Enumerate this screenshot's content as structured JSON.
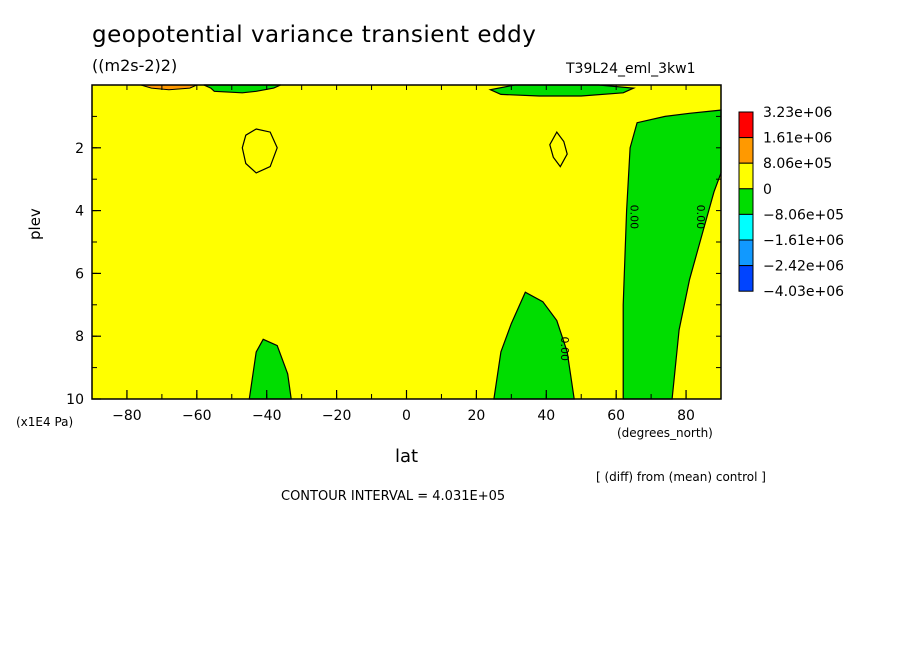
{
  "title": "geopotential variance transient eddy",
  "units": "((m2s-2)2)",
  "run_label": "T39L24_eml_3kw1",
  "chart_data": {
    "type": "contour",
    "xlabel": "lat",
    "x_units": "(degrees_north)",
    "ylabel": "plev",
    "y_units": "(x1E4 Pa)",
    "xlim": [
      -90,
      90
    ],
    "ylim": [
      10,
      0
    ],
    "xticks": [
      -80,
      -60,
      -40,
      -20,
      0,
      20,
      40,
      60,
      80
    ],
    "yticks": [
      2,
      4,
      6,
      8,
      10
    ],
    "legend": {
      "placement": "right",
      "levels": [
        "3.23e+06",
        "1.61e+06",
        "8.06e+05",
        "0",
        "-8.06e+05",
        "-1.61e+06",
        "-2.42e+06",
        "-4.03e+06"
      ],
      "colors": [
        "#ff0000",
        "#ff9900",
        "#ffff00",
        "#00dd00",
        "#00ffff",
        "#1199ff",
        "#0044ff"
      ]
    },
    "contour_labels": [
      {
        "text": "0.00",
        "lat": 65,
        "plev": 4.2
      },
      {
        "text": "0.00",
        "lat": 84,
        "plev": 4.2
      },
      {
        "text": "0.00",
        "lat": 45,
        "plev": 8.4
      }
    ],
    "negative_regions": [
      {
        "name": "sh-upper",
        "points": [
          [
            -58,
            0
          ],
          [
            -56,
            0.1
          ],
          [
            -55,
            0.2
          ],
          [
            -47,
            0.25
          ],
          [
            -43,
            0.2
          ],
          [
            -38,
            0.1
          ],
          [
            -36,
            0
          ]
        ]
      },
      {
        "name": "sh-lower",
        "points": [
          [
            -45,
            10
          ],
          [
            -43,
            8.5
          ],
          [
            -41,
            8.1
          ],
          [
            -37,
            8.3
          ],
          [
            -34,
            9.2
          ],
          [
            -33,
            10
          ]
        ]
      },
      {
        "name": "nh-upper",
        "points": [
          [
            24,
            0.15
          ],
          [
            31,
            0
          ],
          [
            55,
            0
          ],
          [
            65,
            0.1
          ],
          [
            62,
            0.25
          ],
          [
            50,
            0.35
          ],
          [
            38,
            0.35
          ],
          [
            27,
            0.3
          ]
        ]
      },
      {
        "name": "nh-mid",
        "points": [
          [
            25,
            10
          ],
          [
            27,
            8.5
          ],
          [
            30,
            7.6
          ],
          [
            34,
            6.6
          ],
          [
            39,
            6.9
          ],
          [
            43,
            7.5
          ],
          [
            46,
            8.5
          ],
          [
            48,
            10
          ]
        ]
      },
      {
        "name": "nh-polar",
        "points": [
          [
            62,
            10
          ],
          [
            62,
            7
          ],
          [
            63,
            4
          ],
          [
            64,
            2
          ],
          [
            66,
            1.2
          ],
          [
            74,
            1
          ],
          [
            81,
            0.9
          ],
          [
            90,
            0.8
          ],
          [
            90,
            2.8
          ],
          [
            88,
            3.4
          ],
          [
            85,
            4.6
          ],
          [
            81,
            6.2
          ],
          [
            78,
            7.8
          ],
          [
            76,
            10
          ]
        ]
      }
    ],
    "positive_regions": [
      {
        "name": "sh-upper-max",
        "points": [
          [
            -76,
            0
          ],
          [
            -73,
            0.1
          ],
          [
            -68,
            0.15
          ],
          [
            -62,
            0.1
          ],
          [
            -60,
            0
          ]
        ]
      }
    ],
    "zero_contours": [
      {
        "name": "sh-ring",
        "points": [
          [
            -43,
            1.4
          ],
          [
            -39,
            1.5
          ],
          [
            -37,
            2
          ],
          [
            -39,
            2.6
          ],
          [
            -43,
            2.8
          ],
          [
            -46,
            2.5
          ],
          [
            -47,
            2
          ],
          [
            -46,
            1.6
          ]
        ]
      },
      {
        "name": "nh-ring",
        "points": [
          [
            43,
            1.5
          ],
          [
            45,
            1.8
          ],
          [
            46,
            2.2
          ],
          [
            44,
            2.6
          ],
          [
            42,
            2.3
          ],
          [
            41,
            1.9
          ]
        ]
      }
    ],
    "contour_interval_label": "CONTOUR INTERVAL = 4.031E+05",
    "diff_note": "[ (diff) from (mean) control ]"
  }
}
